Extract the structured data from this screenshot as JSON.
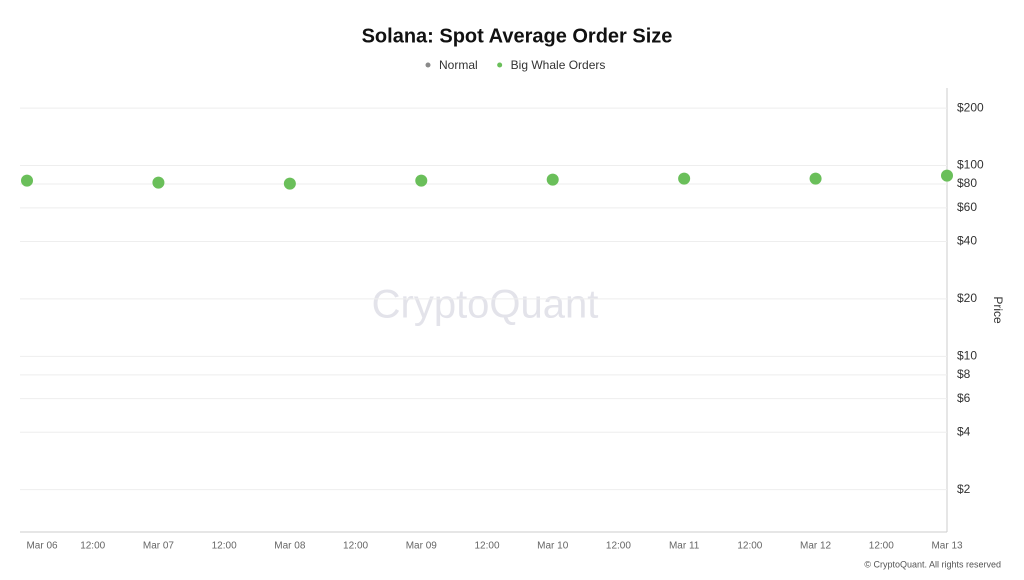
{
  "chart_data": {
    "type": "scatter",
    "title": "Solana: Spot Average Order Size",
    "categories": [
      "Mar 06",
      "12:00",
      "Mar 07",
      "12:00",
      "Mar 08",
      "12:00",
      "Mar 09",
      "12:00",
      "Mar 10",
      "12:00",
      "Mar 11",
      "12:00",
      "Mar 12",
      "12:00",
      "Mar 13"
    ],
    "series": [
      {
        "name": "Normal",
        "color": "#8a8a8a",
        "values": [
          null,
          null,
          null,
          null,
          null,
          null,
          null,
          null,
          null,
          null,
          null,
          null,
          null,
          null,
          null
        ]
      },
      {
        "name": "Big Whale Orders",
        "color": "#6abf5a",
        "values": [
          83.4,
          null,
          81.4,
          null,
          80.4,
          null,
          83.4,
          null,
          84.4,
          null,
          85.4,
          null,
          85.4,
          null,
          88.6
        ]
      }
    ],
    "y_label": "Price",
    "log_y": true,
    "ylim": [
      1.2,
      255
    ],
    "yticks": [
      {
        "value": 2,
        "label": "$2"
      },
      {
        "value": 4,
        "label": "$4"
      },
      {
        "value": 6,
        "label": "$6"
      },
      {
        "value": 8,
        "label": "$8"
      },
      {
        "value": 10,
        "label": "$10"
      },
      {
        "value": 20,
        "label": "$20"
      },
      {
        "value": 40,
        "label": "$40"
      },
      {
        "value": 60,
        "label": "$60"
      },
      {
        "value": 80,
        "label": "$80"
      },
      {
        "value": 100,
        "label": "$100"
      },
      {
        "value": 200,
        "label": "$200"
      }
    ],
    "grid": true,
    "watermark": "CryptoQuant",
    "credit": "© CryptoQuant. All rights reserved"
  }
}
